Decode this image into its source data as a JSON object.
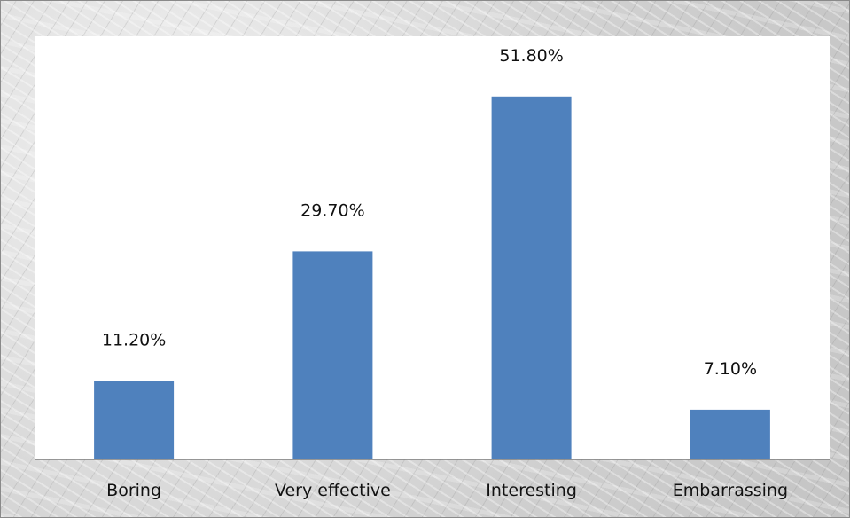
{
  "chart_data": {
    "type": "bar",
    "categories": [
      "Boring",
      "Very effective",
      "Interesting",
      "Embarrassing"
    ],
    "values": [
      11.2,
      29.7,
      51.8,
      7.1
    ],
    "value_labels": [
      "11.20%",
      "29.70%",
      "51.80%",
      "7.10%"
    ],
    "title": "",
    "xlabel": "",
    "ylabel": "",
    "ylim": [
      0,
      60
    ],
    "grid": false,
    "legend": "none"
  },
  "colors": {
    "bar": "#4f81bd",
    "plot_background": "#ffffff",
    "axis": "#7f7f7f"
  }
}
